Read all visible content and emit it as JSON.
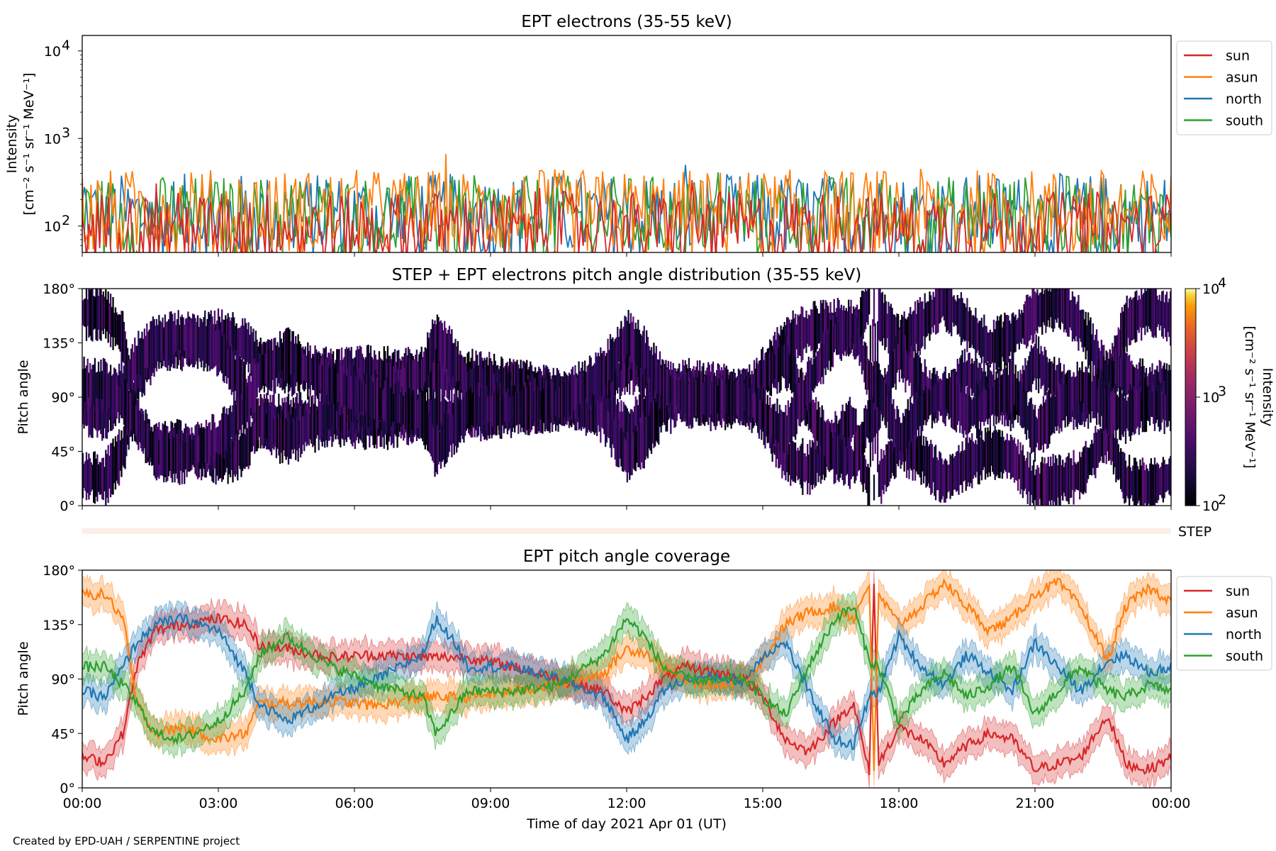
{
  "chart_data": [
    {
      "type": "line",
      "title": "EPT electrons (35-55 keV)",
      "ylabel_line1": "Intensity",
      "ylabel_line2": "[cm⁻² s⁻¹ sr⁻¹ MeV⁻¹]",
      "yscale": "log",
      "ylim": [
        50,
        15000
      ],
      "xlim": [
        0,
        24
      ],
      "y_ticks": [
        {
          "value": 100,
          "base": "10",
          "exp": "2"
        },
        {
          "value": 1000,
          "base": "10",
          "exp": "3"
        },
        {
          "value": 10000,
          "base": "10",
          "exp": "4"
        }
      ],
      "legend": "outside-right-top",
      "series": [
        {
          "name": "sun",
          "color": "#d62728",
          "typical_range": [
            50,
            250
          ]
        },
        {
          "name": "asun",
          "color": "#ff7f0e",
          "typical_range": [
            60,
            450
          ]
        },
        {
          "name": "north",
          "color": "#1f77b4",
          "typical_range": [
            60,
            400
          ]
        },
        {
          "name": "south",
          "color": "#2ca02c",
          "typical_range": [
            60,
            380
          ]
        }
      ]
    },
    {
      "type": "heatmap",
      "title": "STEP + EPT electrons pitch angle distribution (35-55 keV)",
      "ylabel": "Pitch angle",
      "ylim": [
        0,
        180
      ],
      "xlim": [
        0,
        24
      ],
      "y_ticks": [
        "0°",
        "45°",
        "90°",
        "135°",
        "180°"
      ],
      "colorbar": {
        "label": "Intensity",
        "units": "[cm⁻² s⁻¹ sr⁻¹ MeV⁻¹]",
        "scale": "log",
        "range": [
          100,
          10000
        ],
        "ticks": [
          {
            "value": 100,
            "base": "10",
            "exp": "2"
          },
          {
            "value": 1000,
            "base": "10",
            "exp": "3"
          },
          {
            "value": 10000,
            "base": "10",
            "exp": "4"
          }
        ],
        "colormap": "inferno"
      }
    },
    {
      "type": "heatmap",
      "label": "STEP",
      "description_strip": true
    },
    {
      "type": "area",
      "title": "EPT pitch angle coverage",
      "ylabel": "Pitch angle",
      "ylim": [
        0,
        180
      ],
      "xlim": [
        0,
        24
      ],
      "y_ticks": [
        "0°",
        "45°",
        "90°",
        "135°",
        "180°"
      ],
      "x_ticks": [
        "00:00",
        "03:00",
        "06:00",
        "09:00",
        "12:00",
        "15:00",
        "18:00",
        "21:00",
        "00:00"
      ],
      "xlabel": "Time of day 2021 Apr 01 (UT)",
      "legend": "outside-right-top",
      "series": [
        {
          "name": "sun",
          "color": "#d62728",
          "points": [
            [
              0,
              25
            ],
            [
              0.5,
              22
            ],
            [
              0.9,
              45
            ],
            [
              1.2,
              100
            ],
            [
              1.6,
              130
            ],
            [
              2.2,
              135
            ],
            [
              3.0,
              140
            ],
            [
              3.6,
              135
            ],
            [
              3.9,
              118
            ],
            [
              4.5,
              115
            ],
            [
              5.5,
              108
            ],
            [
              6.5,
              110
            ],
            [
              7.5,
              108
            ],
            [
              8.5,
              108
            ],
            [
              9.5,
              100
            ],
            [
              10.5,
              90
            ],
            [
              11.5,
              80
            ],
            [
              12.0,
              62
            ],
            [
              12.4,
              75
            ],
            [
              12.8,
              90
            ],
            [
              13.3,
              100
            ],
            [
              14.0,
              95
            ],
            [
              14.6,
              90
            ],
            [
              15.0,
              75
            ],
            [
              15.5,
              40
            ],
            [
              16.0,
              30
            ],
            [
              16.6,
              55
            ],
            [
              17.0,
              70
            ],
            [
              17.35,
              12
            ],
            [
              17.45,
              175
            ],
            [
              17.55,
              20
            ],
            [
              18.0,
              50
            ],
            [
              18.5,
              40
            ],
            [
              19.0,
              20
            ],
            [
              19.5,
              35
            ],
            [
              20.0,
              45
            ],
            [
              20.5,
              40
            ],
            [
              21.0,
              15
            ],
            [
              21.5,
              20
            ],
            [
              22.0,
              25
            ],
            [
              22.6,
              60
            ],
            [
              23.0,
              20
            ],
            [
              23.5,
              15
            ],
            [
              24.0,
              25
            ]
          ]
        },
        {
          "name": "asun",
          "color": "#ff7f0e",
          "points": [
            [
              0,
              160
            ],
            [
              0.5,
              160
            ],
            [
              0.9,
              140
            ],
            [
              1.2,
              70
            ],
            [
              1.6,
              45
            ],
            [
              2.2,
              50
            ],
            [
              3.0,
              40
            ],
            [
              3.6,
              45
            ],
            [
              3.9,
              70
            ],
            [
              4.5,
              70
            ],
            [
              5.5,
              72
            ],
            [
              6.5,
              68
            ],
            [
              7.5,
              75
            ],
            [
              8.5,
              75
            ],
            [
              9.5,
              80
            ],
            [
              10.5,
              85
            ],
            [
              11.5,
              95
            ],
            [
              12.0,
              115
            ],
            [
              12.4,
              112
            ],
            [
              12.8,
              100
            ],
            [
              13.3,
              88
            ],
            [
              14.0,
              85
            ],
            [
              14.6,
              90
            ],
            [
              15.0,
              105
            ],
            [
              15.5,
              135
            ],
            [
              16.0,
              145
            ],
            [
              16.6,
              150
            ],
            [
              17.0,
              140
            ],
            [
              17.35,
              170
            ],
            [
              17.45,
              10
            ],
            [
              17.55,
              160
            ],
            [
              18.0,
              135
            ],
            [
              18.5,
              150
            ],
            [
              19.0,
              170
            ],
            [
              19.5,
              150
            ],
            [
              20.0,
              130
            ],
            [
              20.5,
              140
            ],
            [
              21.0,
              160
            ],
            [
              21.5,
              170
            ],
            [
              22.0,
              150
            ],
            [
              22.6,
              105
            ],
            [
              23.0,
              150
            ],
            [
              23.5,
              165
            ],
            [
              24.0,
              155
            ]
          ]
        },
        {
          "name": "north",
          "color": "#1f77b4",
          "points": [
            [
              0,
              80
            ],
            [
              0.5,
              75
            ],
            [
              0.9,
              100
            ],
            [
              1.2,
              120
            ],
            [
              1.6,
              135
            ],
            [
              2.2,
              140
            ],
            [
              3.0,
              130
            ],
            [
              3.6,
              95
            ],
            [
              3.9,
              70
            ],
            [
              4.5,
              55
            ],
            [
              5.5,
              75
            ],
            [
              6.5,
              90
            ],
            [
              7.5,
              110
            ],
            [
              7.8,
              140
            ],
            [
              8.3,
              115
            ],
            [
              8.5,
              100
            ],
            [
              9.5,
              100
            ],
            [
              10.5,
              90
            ],
            [
              11.5,
              75
            ],
            [
              12.0,
              40
            ],
            [
              12.4,
              55
            ],
            [
              12.8,
              80
            ],
            [
              13.3,
              90
            ],
            [
              14.0,
              92
            ],
            [
              14.6,
              88
            ],
            [
              15.0,
              110
            ],
            [
              15.5,
              120
            ],
            [
              16.0,
              80
            ],
            [
              16.6,
              40
            ],
            [
              17.0,
              35
            ],
            [
              17.35,
              75
            ],
            [
              17.55,
              80
            ],
            [
              18.0,
              125
            ],
            [
              18.5,
              100
            ],
            [
              19.0,
              85
            ],
            [
              19.5,
              110
            ],
            [
              20.0,
              95
            ],
            [
              20.5,
              80
            ],
            [
              21.0,
              120
            ],
            [
              21.5,
              100
            ],
            [
              22.0,
              80
            ],
            [
              22.6,
              105
            ],
            [
              23.0,
              110
            ],
            [
              23.5,
              95
            ],
            [
              24.0,
              100
            ]
          ]
        },
        {
          "name": "south",
          "color": "#2ca02c",
          "points": [
            [
              0,
              100
            ],
            [
              0.5,
              100
            ],
            [
              0.9,
              85
            ],
            [
              1.2,
              70
            ],
            [
              1.6,
              45
            ],
            [
              2.2,
              40
            ],
            [
              3.0,
              55
            ],
            [
              3.6,
              80
            ],
            [
              3.9,
              110
            ],
            [
              4.5,
              125
            ],
            [
              5.5,
              100
            ],
            [
              6.5,
              85
            ],
            [
              7.5,
              75
            ],
            [
              7.8,
              45
            ],
            [
              8.3,
              70
            ],
            [
              8.5,
              80
            ],
            [
              9.5,
              80
            ],
            [
              10.5,
              85
            ],
            [
              11.5,
              110
            ],
            [
              12.0,
              140
            ],
            [
              12.4,
              125
            ],
            [
              12.8,
              100
            ],
            [
              13.3,
              90
            ],
            [
              14.0,
              88
            ],
            [
              14.6,
              90
            ],
            [
              15.0,
              75
            ],
            [
              15.5,
              60
            ],
            [
              16.0,
              100
            ],
            [
              16.6,
              140
            ],
            [
              17.0,
              150
            ],
            [
              17.35,
              105
            ],
            [
              17.55,
              100
            ],
            [
              18.0,
              55
            ],
            [
              18.5,
              80
            ],
            [
              19.0,
              95
            ],
            [
              19.5,
              75
            ],
            [
              20.0,
              85
            ],
            [
              20.5,
              100
            ],
            [
              21.0,
              60
            ],
            [
              21.5,
              80
            ],
            [
              22.0,
              100
            ],
            [
              22.6,
              80
            ],
            [
              23.0,
              75
            ],
            [
              23.5,
              85
            ],
            [
              24.0,
              80
            ]
          ]
        }
      ]
    }
  ],
  "footer": {
    "credit": "Created by EPD-UAH / SERPENTINE project"
  }
}
